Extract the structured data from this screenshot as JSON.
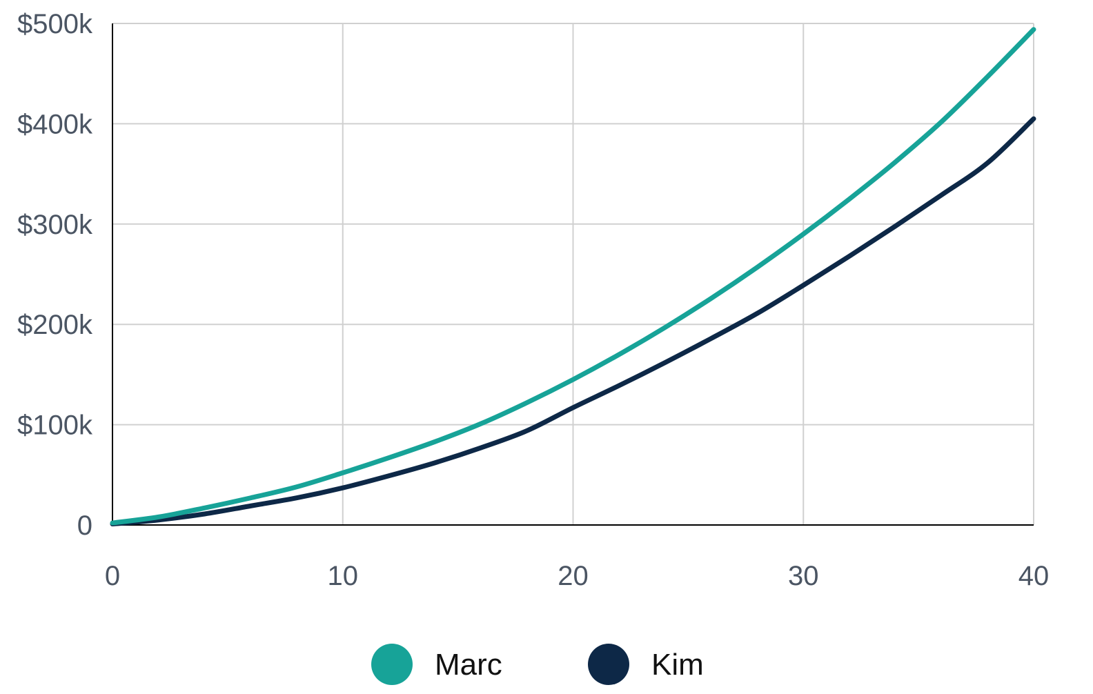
{
  "chart_data": {
    "type": "line",
    "x": [
      0,
      2,
      4,
      6,
      8,
      10,
      12,
      14,
      16,
      18,
      20,
      22,
      24,
      26,
      28,
      30,
      32,
      34,
      36,
      38,
      40
    ],
    "series": [
      {
        "name": "Marc",
        "color": "#17a398",
        "values": [
          2000,
          8000,
          17000,
          27000,
          38000,
          52000,
          67000,
          83000,
          101000,
          122000,
          145000,
          170000,
          197000,
          226000,
          257000,
          290000,
          325000,
          362000,
          402000,
          447000,
          494000
        ]
      },
      {
        "name": "Kim",
        "color": "#0d2847",
        "values": [
          1000,
          5000,
          11000,
          19000,
          27000,
          37000,
          49000,
          62000,
          77000,
          94000,
          117000,
          139000,
          162000,
          186000,
          211000,
          239000,
          268000,
          298000,
          329000,
          361000,
          405000
        ]
      }
    ],
    "xlim": [
      0,
      40
    ],
    "ylim": [
      0,
      500000
    ],
    "x_ticks": [
      0,
      10,
      20,
      30,
      40
    ],
    "x_tick_labels": [
      "0",
      "10",
      "20",
      "30",
      "40"
    ],
    "y_ticks": [
      0,
      100000,
      200000,
      300000,
      400000,
      500000
    ],
    "y_tick_labels": [
      "0",
      "$100k",
      "$200k",
      "$300k",
      "$400k",
      "$500k"
    ],
    "grid": true,
    "legend_position": "bottom-center",
    "title": "",
    "xlabel": "",
    "ylabel": ""
  },
  "colors": {
    "grid": "#d0d0d0",
    "axis": "#000000",
    "tick_text": "#4b5563",
    "legend_text": "#111111"
  }
}
